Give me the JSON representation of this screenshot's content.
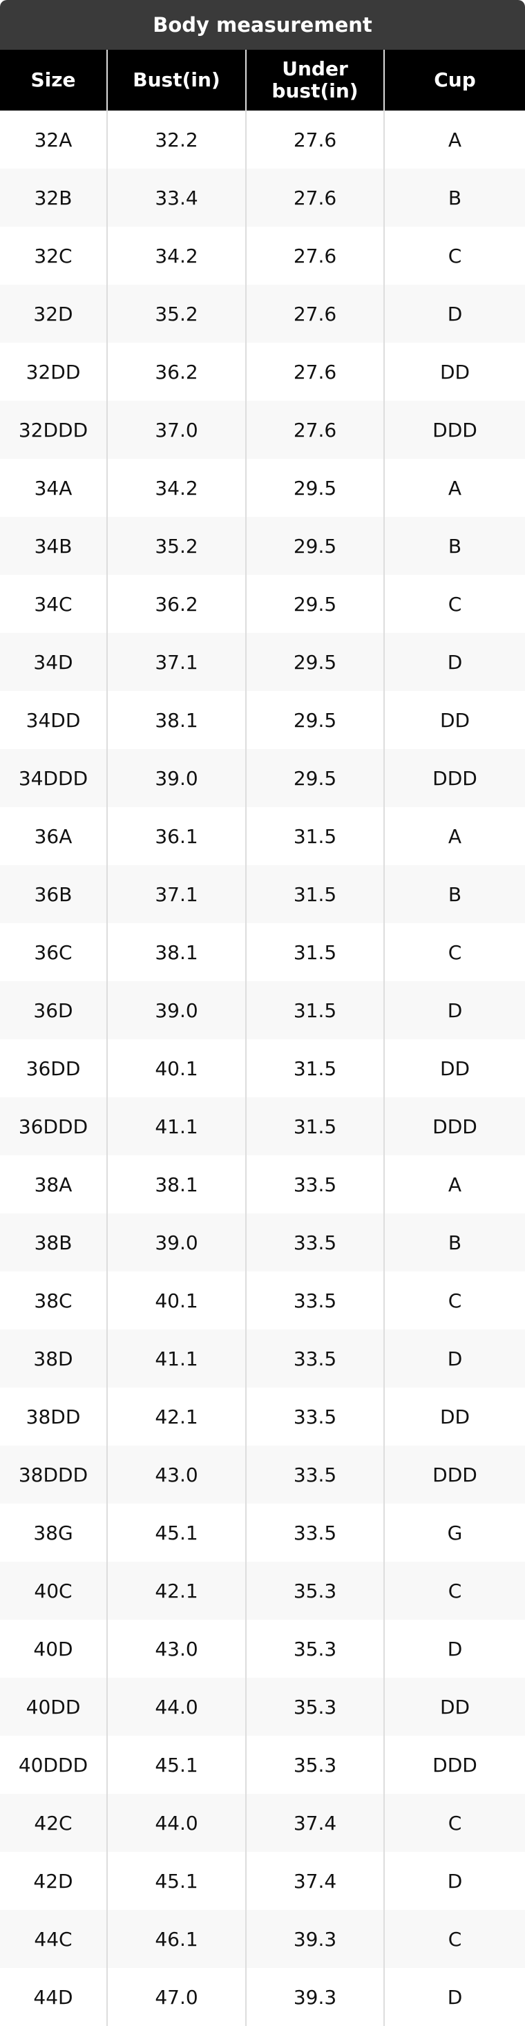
{
  "title": "Body measurement",
  "table": {
    "headers": [
      "Size",
      "Bust(in)",
      "Under bust(in)",
      "Cup"
    ],
    "rows": [
      [
        "32A",
        "32.2",
        "27.6",
        "A"
      ],
      [
        "32B",
        "33.4",
        "27.6",
        "B"
      ],
      [
        "32C",
        "34.2",
        "27.6",
        "C"
      ],
      [
        "32D",
        "35.2",
        "27.6",
        "D"
      ],
      [
        "32DD",
        "36.2",
        "27.6",
        "DD"
      ],
      [
        "32DDD",
        "37.0",
        "27.6",
        "DDD"
      ],
      [
        "34A",
        "34.2",
        "29.5",
        "A"
      ],
      [
        "34B",
        "35.2",
        "29.5",
        "B"
      ],
      [
        "34C",
        "36.2",
        "29.5",
        "C"
      ],
      [
        "34D",
        "37.1",
        "29.5",
        "D"
      ],
      [
        "34DD",
        "38.1",
        "29.5",
        "DD"
      ],
      [
        "34DDD",
        "39.0",
        "29.5",
        "DDD"
      ],
      [
        "36A",
        "36.1",
        "31.5",
        "A"
      ],
      [
        "36B",
        "37.1",
        "31.5",
        "B"
      ],
      [
        "36C",
        "38.1",
        "31.5",
        "C"
      ],
      [
        "36D",
        "39.0",
        "31.5",
        "D"
      ],
      [
        "36DD",
        "40.1",
        "31.5",
        "DD"
      ],
      [
        "36DDD",
        "41.1",
        "31.5",
        "DDD"
      ],
      [
        "38A",
        "38.1",
        "33.5",
        "A"
      ],
      [
        "38B",
        "39.0",
        "33.5",
        "B"
      ],
      [
        "38C",
        "40.1",
        "33.5",
        "C"
      ],
      [
        "38D",
        "41.1",
        "33.5",
        "D"
      ],
      [
        "38DD",
        "42.1",
        "33.5",
        "DD"
      ],
      [
        "38DDD",
        "43.0",
        "33.5",
        "DDD"
      ],
      [
        "38G",
        "45.1",
        "33.5",
        "G"
      ],
      [
        "40C",
        "42.1",
        "35.3",
        "C"
      ],
      [
        "40D",
        "43.0",
        "35.3",
        "D"
      ],
      [
        "40DD",
        "44.0",
        "35.3",
        "DD"
      ],
      [
        "40DDD",
        "45.1",
        "35.3",
        "DDD"
      ],
      [
        "42C",
        "44.0",
        "37.4",
        "C"
      ],
      [
        "42D",
        "45.1",
        "37.4",
        "D"
      ],
      [
        "44C",
        "46.1",
        "39.3",
        "C"
      ],
      [
        "44D",
        "47.0",
        "39.3",
        "D"
      ]
    ]
  }
}
